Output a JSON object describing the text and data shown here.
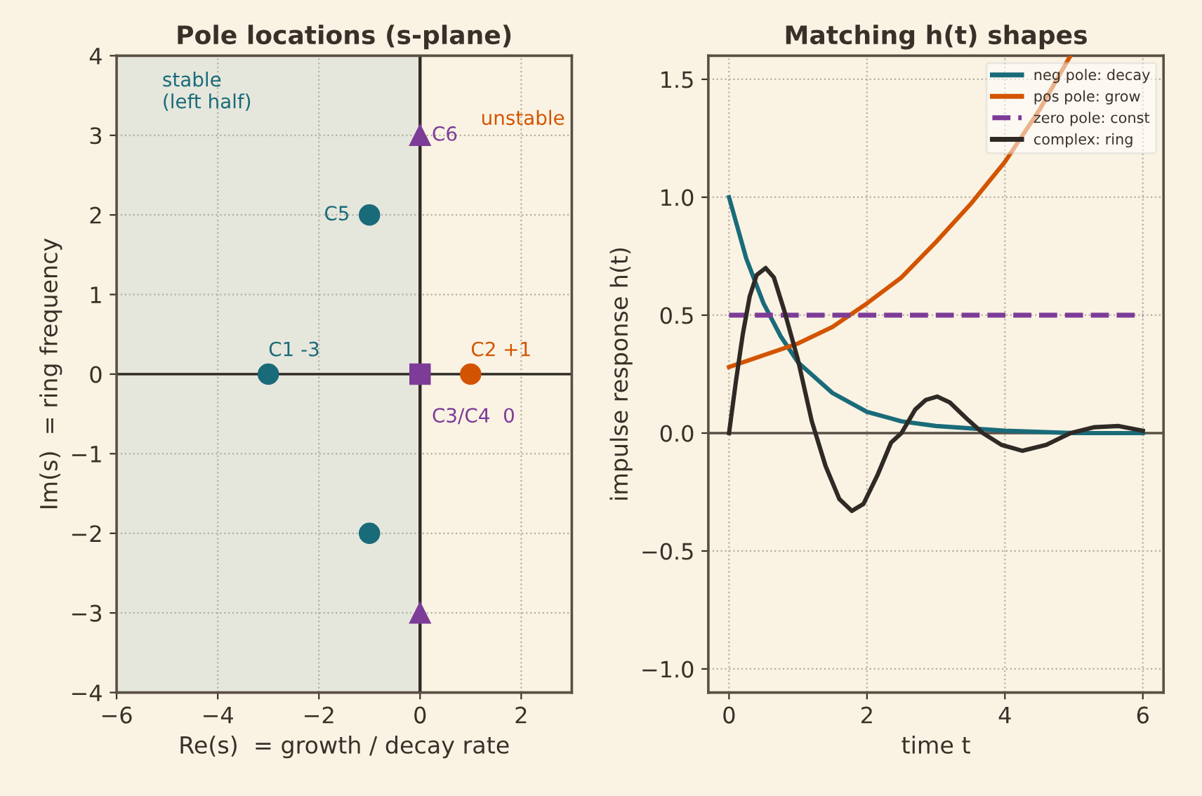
{
  "chart_data": [
    {
      "type": "scatter",
      "title": "Pole locations (s-plane)",
      "xlabel": "Re(s)  = growth / decay rate",
      "ylabel": "Im(s)  = ring frequency",
      "series": [
        {
          "color": "#1a6b7a",
          "marker": "circle",
          "x": [
            -3,
            -1,
            -1
          ],
          "values": [
            0,
            2,
            -2
          ]
        },
        {
          "color": "#d35400",
          "marker": "circle",
          "x": [
            1
          ],
          "values": [
            0
          ]
        },
        {
          "color": "#7d3c98",
          "marker": "square",
          "x": [
            0
          ],
          "values": [
            0
          ]
        },
        {
          "color": "#7d3c98",
          "marker": "triangle",
          "x": [
            0,
            0
          ],
          "values": [
            3,
            -3
          ]
        }
      ],
      "xlim": [
        -6,
        3
      ],
      "ylim": [
        -4,
        4
      ],
      "xticks": [
        {
          "value": -6,
          "label": "−6"
        },
        {
          "value": -4,
          "label": "−4"
        },
        {
          "value": -2,
          "label": "−2"
        },
        0,
        2
      ],
      "yticks": [
        {
          "value": -4,
          "label": "−4"
        },
        {
          "value": -3,
          "label": "−3"
        },
        {
          "value": -2,
          "label": "−2"
        },
        {
          "value": -1,
          "label": "−1"
        },
        0,
        1,
        2,
        3,
        4
      ],
      "bands": [
        {
          "axis": "x",
          "from": -6,
          "to": 0,
          "label": "stable\n(left half)",
          "color": "#e6e7dc"
        }
      ],
      "ref_lines": [
        {
          "axis": "x",
          "value": 0,
          "color": "#2f2a26"
        },
        {
          "axis": "y",
          "value": 0,
          "color": "#2f2a26"
        }
      ],
      "annotations": [
        {
          "text": "C1 -3",
          "x": -3,
          "y": 0
        },
        {
          "text": "C2 +1",
          "x": 1,
          "y": 0
        },
        {
          "text": "C3/C4  0",
          "x": 0,
          "y": 0
        },
        {
          "text": "C5",
          "x": -1,
          "y": 2
        },
        {
          "text": "C6",
          "x": 0,
          "y": 3
        },
        "unstable"
      ],
      "grid": true,
      "legend": false
    },
    {
      "type": "line",
      "title": "Matching h(t) shapes",
      "xlabel": "time t",
      "ylabel": "impulse response h(t)",
      "series": [
        {
          "name": "neg pole: decay",
          "color": "#1a6b7a",
          "x": [
            0,
            0.25,
            0.5,
            0.75,
            1,
            1.5,
            2,
            2.5,
            3,
            4,
            5,
            6
          ],
          "values": [
            1,
            0.74,
            0.55,
            0.41,
            0.3,
            0.17,
            0.09,
            0.05,
            0.03,
            0.01,
            0,
            0
          ]
        },
        {
          "name": "pos pole: grow",
          "color": "#d35400",
          "x": [
            0,
            1,
            1.5,
            2,
            2.5,
            3,
            3.5,
            4,
            4.5,
            4.95
          ],
          "values": [
            0.28,
            0.38,
            0.45,
            0.55,
            0.66,
            0.81,
            0.97,
            1.15,
            1.37,
            1.6
          ]
        },
        {
          "name": "zero pole: const",
          "color": "#7d3c98",
          "line_style": "dashed",
          "x": [
            0,
            6
          ],
          "values": [
            0.5,
            0.5
          ]
        },
        {
          "name": "complex: ring",
          "color": "#2f2a26",
          "x": [
            0,
            0.1,
            0.2,
            0.3,
            0.4,
            0.53,
            0.65,
            0.8,
            1,
            1.2,
            1.4,
            1.6,
            1.78,
            1.95,
            2.15,
            2.35,
            2.5,
            2.7,
            2.85,
            3.02,
            3.2,
            3.45,
            3.68,
            3.95,
            4.25,
            4.6,
            4.95,
            5.3,
            5.65,
            6
          ],
          "values": [
            0,
            0.22,
            0.42,
            0.58,
            0.67,
            0.7,
            0.66,
            0.52,
            0.31,
            0.05,
            -0.14,
            -0.28,
            -0.33,
            -0.3,
            -0.18,
            -0.04,
            0,
            0.1,
            0.14,
            0.155,
            0.13,
            0.06,
            0,
            -0.05,
            -0.075,
            -0.05,
            0,
            0.025,
            0.03,
            0.01
          ]
        }
      ],
      "xlim": [
        -0.3,
        6.3
      ],
      "ylim": [
        -1.1,
        1.6
      ],
      "xticks": [
        0,
        2,
        4,
        6
      ],
      "yticks": [
        {
          "value": -1,
          "label": "−1.0"
        },
        {
          "value": -0.5,
          "label": "−0.5"
        },
        {
          "value": 0,
          "label": "0.0"
        },
        0.5,
        {
          "value": 1,
          "label": "1.0"
        },
        1.5
      ],
      "ref_lines": [
        {
          "axis": "y",
          "value": 0,
          "color": "#5a4f45"
        }
      ],
      "grid": true,
      "legend": "top right"
    }
  ]
}
